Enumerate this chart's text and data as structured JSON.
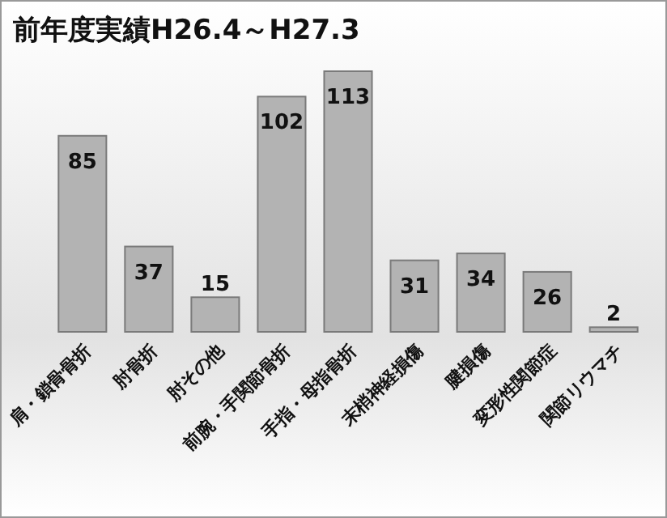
{
  "chart_data": {
    "type": "bar",
    "title": "前年度実績H26.4～H27.3",
    "categories": [
      "肩・鎖骨骨折",
      "肘骨折",
      "肘その他",
      "前腕・手関節骨折",
      "手指・母指骨折",
      "末梢神経損傷",
      "腱損傷",
      "変形性関節症",
      "関節リウマチ"
    ],
    "values": [
      85,
      37,
      15,
      102,
      113,
      31,
      34,
      26,
      2
    ],
    "color": "#b3b3b3",
    "data_labels": true
  }
}
